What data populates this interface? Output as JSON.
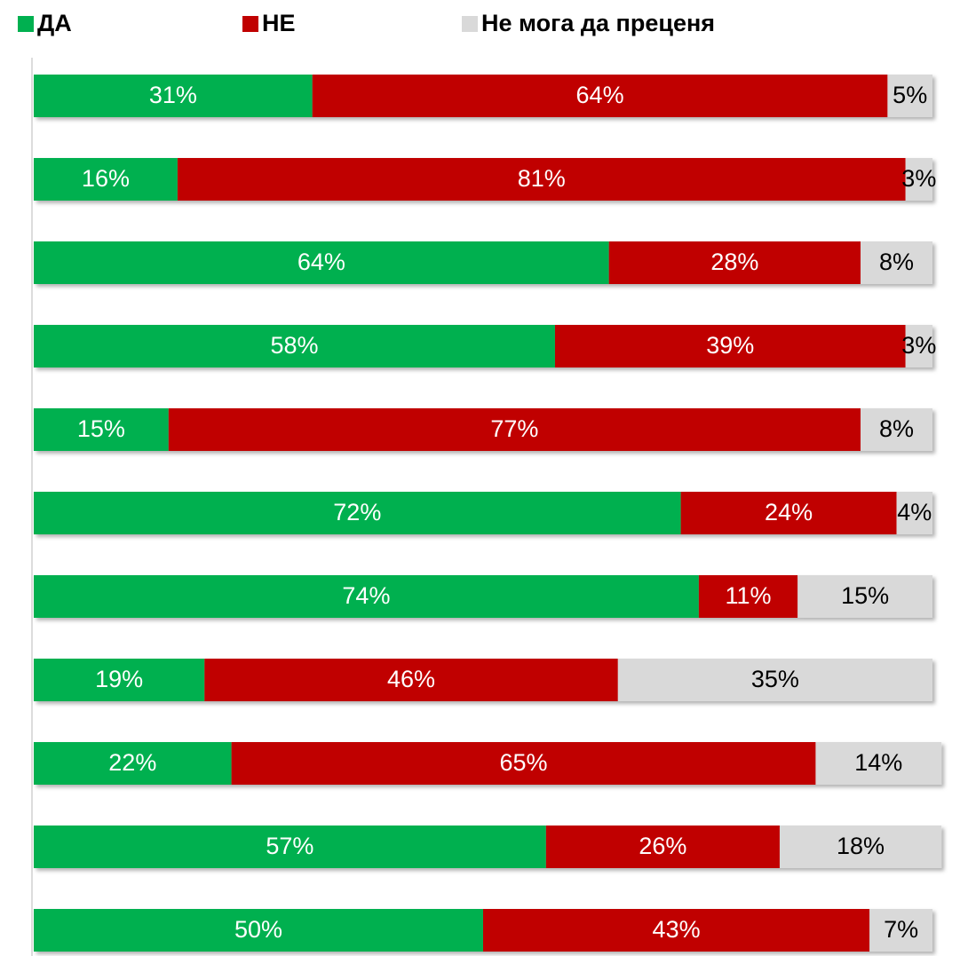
{
  "chart_data": {
    "type": "stacked_bar_horizontal",
    "categories": [
      null,
      null,
      null,
      null,
      null,
      null,
      null,
      null,
      null,
      null,
      null
    ],
    "xlim": [
      0,
      100
    ],
    "legend": "top",
    "series": [
      {
        "name": "ДА",
        "color": "#00b050",
        "label_color": "#ffffff",
        "values": [
          31,
          16,
          64,
          58,
          15,
          72,
          74,
          19,
          22,
          57,
          50
        ],
        "value_labels": [
          "31%",
          "16%",
          "64%",
          "58%",
          "15%",
          "72%",
          "74%",
          "19%",
          "22%",
          "57%",
          "50%"
        ]
      },
      {
        "name": "НЕ",
        "color": "#c00000",
        "label_color": "#ffffff",
        "values": [
          64,
          81,
          28,
          39,
          77,
          24,
          11,
          46,
          65,
          26,
          43
        ],
        "value_labels": [
          "64%",
          "81%",
          "28%",
          "39%",
          "77%",
          "24%",
          "11%",
          "46%",
          "65%",
          "26%",
          "43%"
        ]
      },
      {
        "name": "Не мога да преценя",
        "color": "#d9d9d9",
        "label_color": "#000000",
        "values": [
          5,
          3,
          8,
          3,
          8,
          4,
          15,
          35,
          14,
          18,
          7
        ],
        "value_labels": [
          "5%",
          "3%",
          "8%",
          "3%",
          "8%",
          "4%",
          "15%",
          "35%",
          "14%",
          "18%",
          "7%"
        ]
      }
    ]
  }
}
